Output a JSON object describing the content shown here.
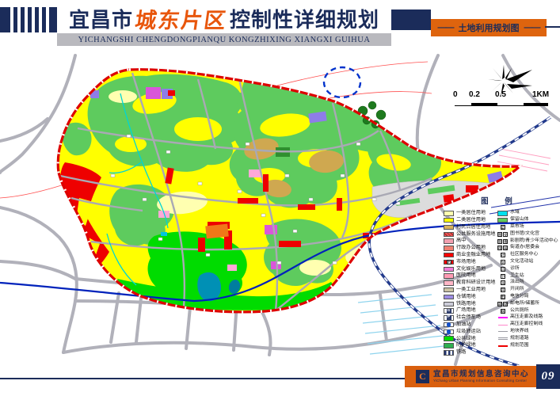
{
  "header": {
    "title_part1": "宜昌市",
    "title_highlight": "城东片区",
    "title_part2": "控制性详细规划",
    "subtitle_pinyin": "YICHANGSHI CHENGDONGPIANQU KONGZHIXING XIANGXI GUIHUA",
    "map_label": "土地利用规划图",
    "map_label_dash": "——"
  },
  "scale_bar": {
    "labels": [
      "0",
      "0.2",
      "0.5",
      "1KM"
    ]
  },
  "legend": {
    "title": "图 例",
    "left": [
      {
        "label": "一类居住用地",
        "type": "fill",
        "color": "#ffffb0"
      },
      {
        "label": "二类居住用地",
        "type": "fill",
        "color": "#ffff00"
      },
      {
        "label": "村民点居住用地",
        "type": "fill",
        "color": "#d8b25c"
      },
      {
        "label": "公共服务设施用地",
        "type": "fill",
        "color": "#e85858",
        "hatch": true
      },
      {
        "label": "高中",
        "type": "fill",
        "color": "#f2a0b0"
      },
      {
        "label": "行政办公用地",
        "type": "fill",
        "color": "#ef8072"
      },
      {
        "label": "商业金融业用地",
        "type": "fill",
        "color": "#fe0000"
      },
      {
        "label": "市场用地",
        "type": "fill",
        "color": "#fe0000",
        "badge": "市"
      },
      {
        "label": "文化娱乐用地",
        "type": "fill",
        "color": "#ef7ad8"
      },
      {
        "label": "医院用地",
        "type": "fill",
        "color": "#ff9cb4"
      },
      {
        "label": "教育科研设计用地",
        "type": "fill",
        "color": "#ffb6c6"
      },
      {
        "label": "一类工业用地",
        "type": "fill",
        "color": "#cbc3a3"
      },
      {
        "label": "仓储用地",
        "type": "fill",
        "color": "#9c8ce4"
      },
      {
        "label": "铁路用地",
        "type": "fill",
        "color": "#ccccd8"
      },
      {
        "label": "广场用地",
        "type": "badge",
        "badge": "G",
        "color": "#32406e"
      },
      {
        "label": "社会停车场",
        "type": "badge",
        "badge": "P",
        "color": "#32406e"
      },
      {
        "label": "加油站",
        "type": "dot",
        "color": "#1550c8"
      },
      {
        "label": "垃圾转运站",
        "type": "dot",
        "color": "#1550c8"
      },
      {
        "label": "公共绿地",
        "type": "fill",
        "color": "#00dc00"
      },
      {
        "label": "防护绿地",
        "type": "fill",
        "color": "#2fae4f"
      },
      {
        "label": "铁路",
        "type": "stripes"
      }
    ],
    "right": [
      {
        "label": "水域",
        "type": "fill",
        "color": "#00e0ee"
      },
      {
        "label": "保留山体",
        "type": "fill",
        "color": "#5ecb5e"
      },
      {
        "label": "菜市场",
        "type": "boxes",
        "chars": [
          "菜"
        ]
      },
      {
        "label": "图书馆/文化宫",
        "type": "boxes",
        "chars": [
          "图",
          "文"
        ]
      },
      {
        "label": "影剧院/青少年活动中心",
        "type": "boxes",
        "chars": [
          "影",
          "青"
        ]
      },
      {
        "label": "街道办/居委会",
        "type": "boxes",
        "chars": [
          "街",
          "居"
        ]
      },
      {
        "label": "社区服务中心",
        "type": "boxes",
        "chars": [
          "社"
        ]
      },
      {
        "label": "文化活动站",
        "type": "boxes",
        "chars": [
          "文"
        ]
      },
      {
        "label": "诊所",
        "type": "boxes",
        "chars": [
          "诊"
        ]
      },
      {
        "label": "卫生站",
        "type": "boxes",
        "chars": [
          "卫"
        ]
      },
      {
        "label": "派出所",
        "type": "boxes",
        "chars": [
          "派"
        ]
      },
      {
        "label": "开闭所",
        "type": "boxes",
        "chars": [
          "开"
        ]
      },
      {
        "label": "电信分局",
        "type": "boxes",
        "chars": [
          "电"
        ]
      },
      {
        "label": "邮电所/储蓄所",
        "type": "boxes",
        "chars": [
          "邮",
          "储"
        ]
      },
      {
        "label": "公共厕所",
        "type": "boxes",
        "chars": [
          "厕"
        ]
      },
      {
        "label": "高压走廊及线路",
        "type": "line",
        "color": "#ff00ff",
        "thickness": 2
      },
      {
        "label": "高压走廊控制线",
        "type": "line",
        "color": "#ff88cc",
        "thickness": 1
      },
      {
        "label": "地块界线",
        "type": "line",
        "color": "#9a9aa2",
        "thickness": 1
      },
      {
        "label": "规划道路",
        "type": "dline",
        "color": "#9a9aa2"
      },
      {
        "label": "规划范围",
        "type": "line",
        "color": "#ee0000",
        "thickness": 2
      }
    ]
  },
  "footer": {
    "org_cn": "宜昌市规划信息咨询中心",
    "org_en": "YiChang Urban Planning Information Consulting Center",
    "page": "09"
  },
  "colors": {
    "navy": "#1b2c5a",
    "orange_bar": "#de640e",
    "title_highlight": "#e8560c",
    "boundary_red": "#dd0000",
    "mountain_green": "#5ecb5e",
    "park_green": "#00dc00",
    "water_cyan": "#00e0ee"
  }
}
